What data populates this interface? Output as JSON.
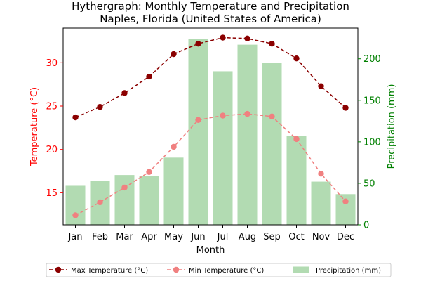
{
  "chart_data": {
    "type": "bar",
    "title": "Hythergraph: Monthly Temperature and Precipitation",
    "subtitle": "Naples, Florida (United States of America)",
    "xlabel": "Month",
    "ylabel_left": "Temperature (°C)",
    "ylabel_right": "Precipitation (mm)",
    "categories": [
      "Jan",
      "Feb",
      "Mar",
      "Apr",
      "May",
      "Jun",
      "Jul",
      "Aug",
      "Sep",
      "Oct",
      "Nov",
      "Dec"
    ],
    "ylim_left": [
      11.3,
      34.0
    ],
    "ylim_right": [
      0,
      237
    ],
    "yticks_left": [
      15,
      20,
      25,
      30
    ],
    "yticks_right": [
      0,
      50,
      100,
      150,
      200
    ],
    "grid": false,
    "legend_position": "bottom",
    "series": [
      {
        "name": "Max Temperature (°C)",
        "type": "line",
        "axis": "left",
        "color": "#8b0000",
        "style": "dashed",
        "values": [
          23.7,
          24.9,
          26.5,
          28.4,
          31.0,
          32.2,
          32.9,
          32.8,
          32.2,
          30.5,
          27.3,
          24.8
        ]
      },
      {
        "name": "Min Temperature (°C)",
        "type": "line",
        "axis": "left",
        "color": "#f08080",
        "style": "dashed",
        "values": [
          12.4,
          13.9,
          15.6,
          17.4,
          20.3,
          23.4,
          23.9,
          24.1,
          23.8,
          21.2,
          17.2,
          14.0
        ]
      },
      {
        "name": "Precipitation (mm)",
        "type": "bar",
        "axis": "right",
        "color": "#b2dbb2",
        "values": [
          47,
          53,
          60,
          59,
          81,
          224,
          185,
          217,
          195,
          107,
          52,
          37
        ]
      }
    ],
    "left_axis_color": "#ff0000",
    "right_axis_color": "#008000"
  }
}
